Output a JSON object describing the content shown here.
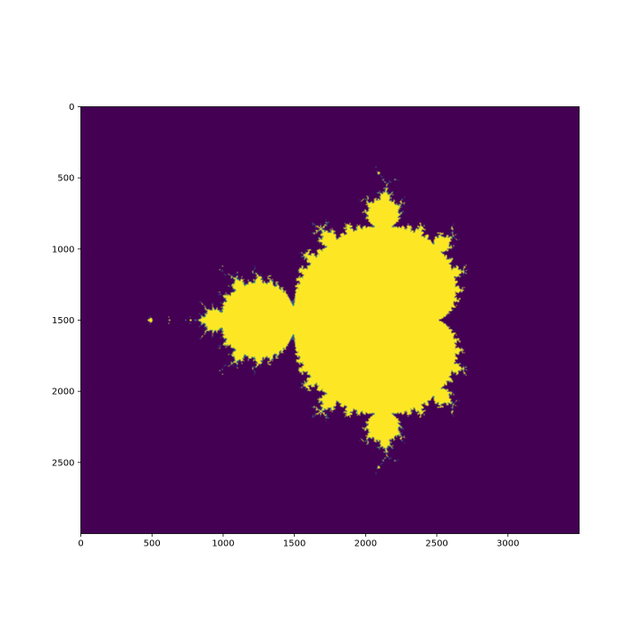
{
  "chart_data": {
    "type": "heatmap",
    "title": "",
    "xlabel": "",
    "ylabel": "",
    "xlim": [
      0,
      3500
    ],
    "ylim": [
      3000,
      0
    ],
    "x_ticks": [
      0,
      500,
      1000,
      1500,
      2000,
      2500,
      3000
    ],
    "y_ticks": [
      0,
      500,
      1000,
      1500,
      2000,
      2500
    ],
    "x_tick_labels": [
      "0",
      "500",
      "1000",
      "1500",
      "2000",
      "2500",
      "3000"
    ],
    "y_tick_labels": [
      "0",
      "500",
      "1000",
      "1500",
      "2000",
      "2500"
    ],
    "colormap": "viridis",
    "colors": {
      "background": "#440154",
      "set": "#fde725",
      "edge": "#21918c",
      "edge2": "#3b528b"
    },
    "grid": false,
    "legend": "none",
    "image": {
      "description_key": "mandelbrot-set",
      "complex_plane": {
        "re_range": [
          -2.25,
          1.25
        ],
        "im_range": [
          -1.5,
          1.5
        ]
      },
      "max_iter": 30
    }
  }
}
